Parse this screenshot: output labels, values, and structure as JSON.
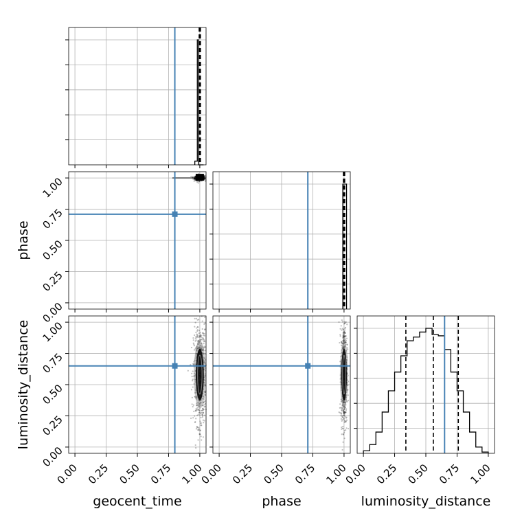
{
  "chart_data": {
    "type": "corner",
    "parameters": [
      "geocent_time",
      "phase",
      "luminosity_distance"
    ],
    "tick_labels": [
      "0.00",
      "0.25",
      "0.50",
      "0.75",
      "1.00"
    ],
    "range": [
      -0.05,
      1.05
    ],
    "grid": true,
    "colors": {
      "truth": "#4682b4",
      "hist": "#000000",
      "grid": "#b0b0b0"
    },
    "truths": {
      "geocent_time": 0.8,
      "phase": 0.71,
      "luminosity_distance": 0.65
    },
    "marginals": {
      "geocent_time": {
        "quantiles": [
          0.995,
          1.0,
          1.005
        ],
        "bins": [
          0.96,
          0.98,
          0.99,
          1.03
        ],
        "counts": [
          0.03,
          1.0,
          0.0
        ]
      },
      "phase": {
        "quantiles": [
          0.995,
          1.0,
          1.005
        ],
        "bins": [
          0.99,
          1.0,
          1.02
        ],
        "counts": [
          1.0,
          1.0
        ]
      },
      "luminosity_distance": {
        "quantiles": [
          0.34,
          0.56,
          0.76
        ],
        "bins": [
          0.0,
          0.05,
          0.1,
          0.15,
          0.2,
          0.25,
          0.3,
          0.35,
          0.4,
          0.45,
          0.5,
          0.55,
          0.6,
          0.65,
          0.7,
          0.75,
          0.8,
          0.85,
          0.9,
          0.95,
          1.0
        ],
        "counts": [
          0.02,
          0.07,
          0.17,
          0.33,
          0.5,
          0.65,
          0.78,
          0.9,
          0.93,
          0.97,
          1.0,
          0.95,
          0.94,
          0.83,
          0.65,
          0.5,
          0.33,
          0.17,
          0.05,
          0.01
        ]
      }
    },
    "joint": {
      "phase_vs_geocent_time": {
        "x_center": 1.0,
        "y_center": 1.0,
        "x_spread": 0.02,
        "y_spread": 0.01
      },
      "luminosity_distance_vs_geocent_time": {
        "x_center": 1.0,
        "y_center": 0.58,
        "x_spread": 0.025,
        "y_spread": 0.2
      },
      "luminosity_distance_vs_phase": {
        "x_center": 1.0,
        "y_center": 0.58,
        "x_spread": 0.012,
        "y_spread": 0.2
      }
    }
  }
}
